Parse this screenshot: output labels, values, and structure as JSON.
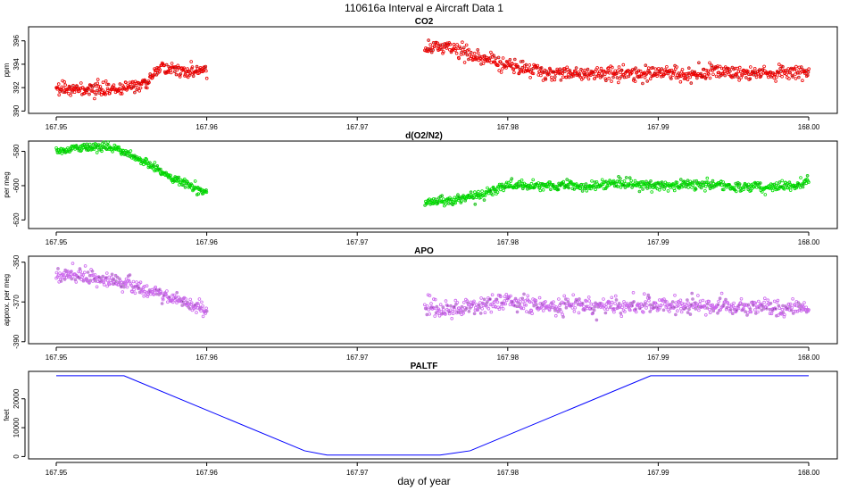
{
  "figure": {
    "title": "110616a   Interval e Aircraft Data 1",
    "xlabel": "day of year"
  },
  "chart_data": [
    {
      "type": "scatter",
      "title": "CO2",
      "ylabel": "ppm",
      "xlim": [
        167.95,
        168.0
      ],
      "ylim": [
        389.8,
        397.2
      ],
      "x_ticks": [
        "167.95",
        "167.96",
        "167.97",
        "167.98",
        "167.99",
        "168.00"
      ],
      "y_ticks": [
        390,
        392,
        394,
        396
      ],
      "point_color": "#ee0000",
      "series": [
        {
          "segments": [
            {
              "x": [
                167.95,
                167.952,
                167.954,
                167.956,
                167.957,
                167.9585,
                167.96
              ],
              "y": [
                392.0,
                391.8,
                391.8,
                392.4,
                393.8,
                393.4,
                393.4
              ],
              "noise": 0.45,
              "count": 260
            },
            {
              "x": [
                167.9745,
                167.976,
                167.978,
                167.98,
                167.982,
                167.984,
                167.986,
                167.988,
                167.99,
                167.992,
                167.994,
                167.996,
                167.998,
                168.0
              ],
              "y": [
                395.3,
                395.5,
                394.6,
                393.9,
                393.4,
                393.2,
                393.2,
                393.2,
                393.3,
                393.1,
                393.5,
                393.2,
                393.3,
                393.4
              ],
              "noise": 0.5,
              "count": 620
            }
          ]
        }
      ]
    },
    {
      "type": "scatter",
      "title": "d(O2/N2)",
      "ylabel": "per meg",
      "xlim": [
        167.95,
        168.0
      ],
      "ylim": [
        -625,
        -574
      ],
      "x_ticks": [
        "167.95",
        "167.96",
        "167.97",
        "167.98",
        "167.99",
        "168.00"
      ],
      "y_ticks": [
        -620,
        -600,
        -580
      ],
      "point_color": "#00dd00",
      "series": [
        {
          "segments": [
            {
              "x": [
                167.95,
                167.952,
                167.954,
                167.956,
                167.958,
                167.96
              ],
              "y": [
                -580,
                -577,
                -578,
                -587,
                -597,
                -604
              ],
              "noise": 2.0,
              "count": 260
            },
            {
              "x": [
                167.9745,
                167.976,
                167.978,
                167.98,
                167.982,
                167.985,
                167.988,
                167.99,
                167.993,
                167.995,
                167.998,
                168.0
              ],
              "y": [
                -609,
                -609,
                -606,
                -600,
                -600,
                -600,
                -599,
                -600,
                -599,
                -601,
                -601,
                -598
              ],
              "noise": 2.3,
              "count": 620
            }
          ]
        }
      ]
    },
    {
      "type": "scatter",
      "title": "APO",
      "ylabel": "approx. per meg",
      "xlim": [
        167.95,
        168.0
      ],
      "ylim": [
        -391,
        -347
      ],
      "x_ticks": [
        "167.95",
        "167.96",
        "167.97",
        "167.98",
        "167.99",
        "168.00"
      ],
      "y_ticks": [
        -390,
        -370,
        -350
      ],
      "point_color": "#cc66ee",
      "series": [
        {
          "segments": [
            {
              "x": [
                167.95,
                167.952,
                167.954,
                167.956,
                167.958,
                167.96
              ],
              "y": [
                -357,
                -357,
                -360,
                -364,
                -369,
                -374
              ],
              "noise": 3.0,
              "count": 260
            },
            {
              "x": [
                167.9745,
                167.976,
                167.978,
                167.98,
                167.982,
                167.985,
                167.988,
                167.99,
                167.993,
                167.995,
                167.998,
                168.0
              ],
              "y": [
                -373,
                -374,
                -372,
                -370,
                -372,
                -372,
                -372,
                -371,
                -372,
                -373,
                -373,
                -373
              ],
              "noise": 3.5,
              "count": 620
            }
          ]
        }
      ]
    },
    {
      "type": "line",
      "title": "PALTF",
      "ylabel": "feet",
      "xlim": [
        167.95,
        168.0
      ],
      "ylim": [
        -800,
        29500
      ],
      "x_ticks": [
        "167.95",
        "167.96",
        "167.97",
        "167.98",
        "167.99",
        "168.00"
      ],
      "y_ticks": [
        0,
        10000,
        20000
      ],
      "line_color": "#0000ff",
      "series": [
        {
          "x": [
            167.95,
            167.9545,
            167.9665,
            167.968,
            167.9755,
            167.9775,
            167.9895,
            168.0
          ],
          "y": [
            28000,
            28000,
            2000,
            500,
            500,
            2000,
            28000,
            28000
          ]
        }
      ]
    }
  ],
  "colors": {
    "axis": "#000000",
    "background": "#ffffff"
  }
}
